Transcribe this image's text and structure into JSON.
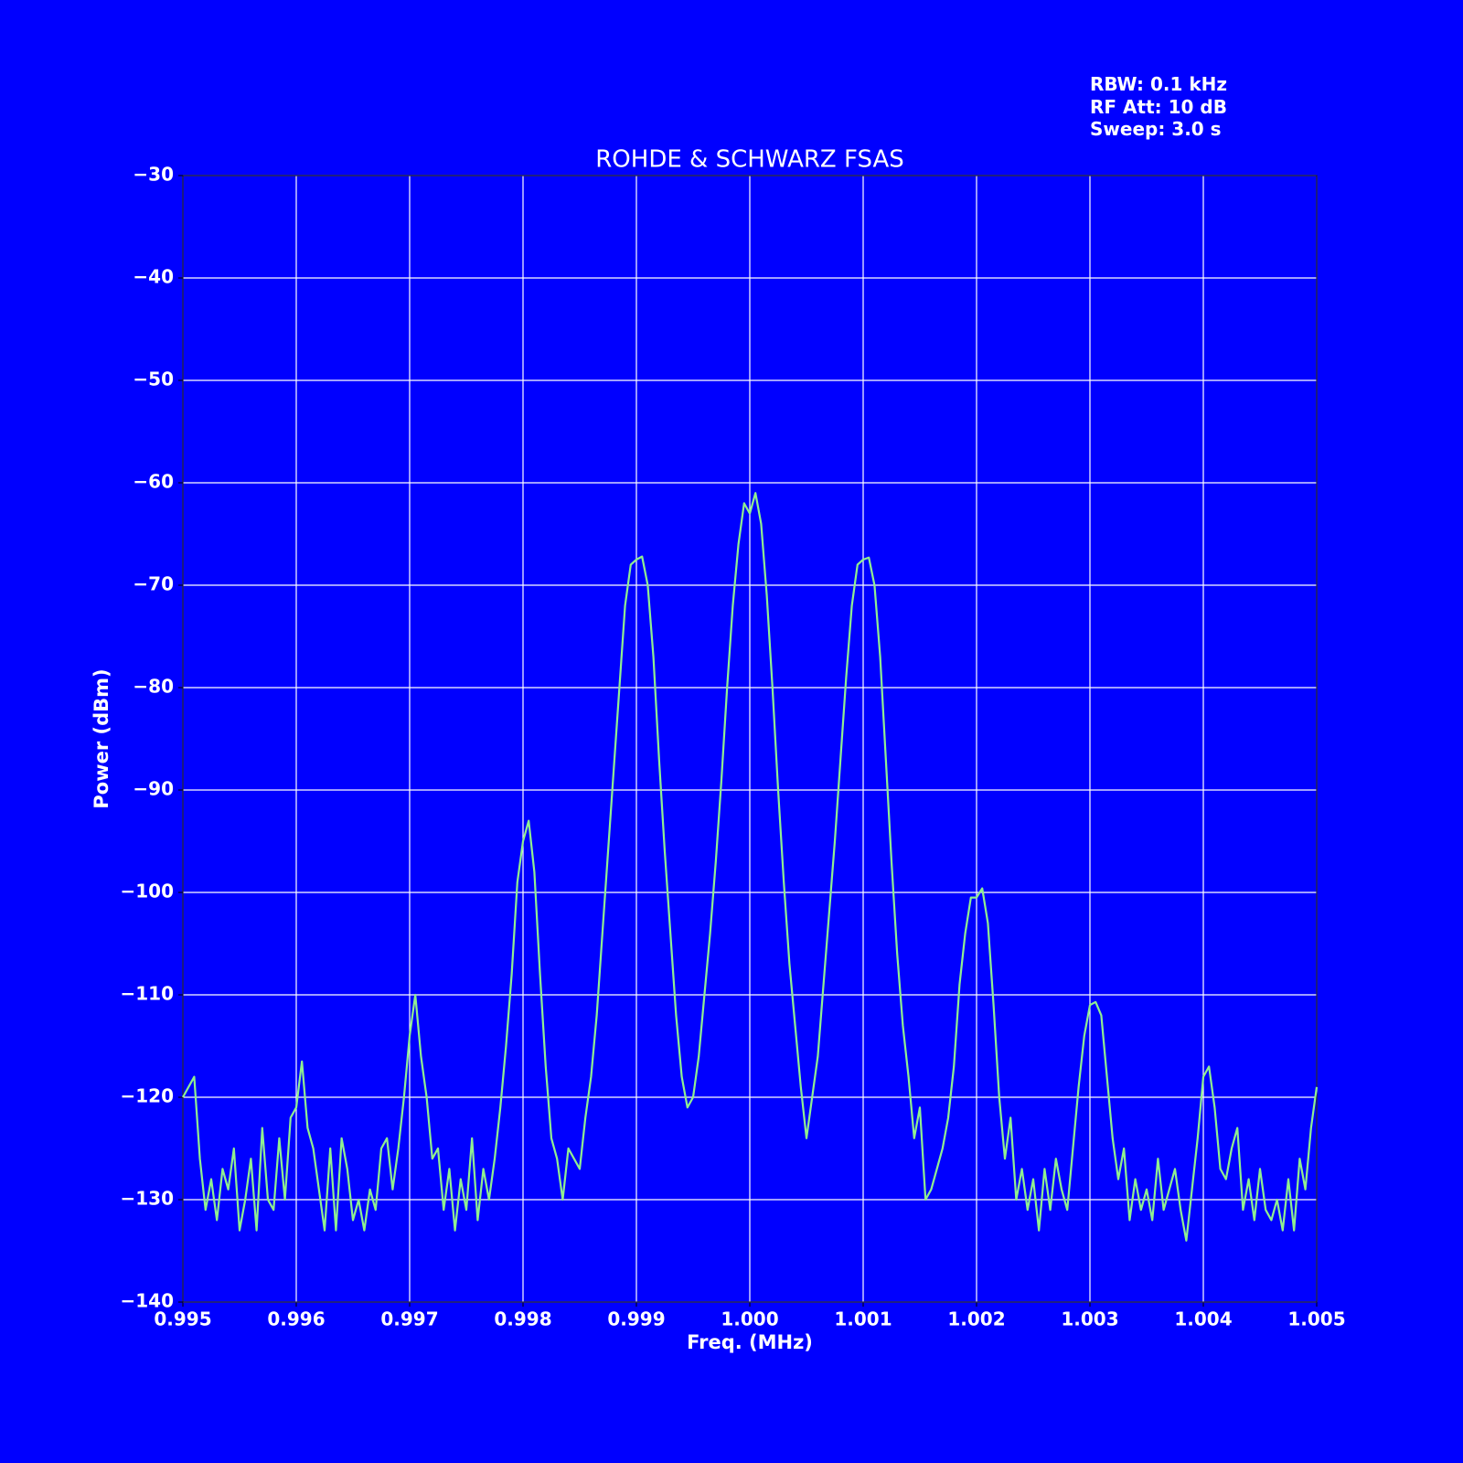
{
  "chart_data": {
    "type": "line",
    "title": "ROHDE & SCHWARZ FSAS",
    "annotation": [
      "RBW: 0.1 kHz",
      "RF Att: 10 dB",
      "Sweep: 3.0 s"
    ],
    "xlabel": "Freq. (MHz)",
    "ylabel": "Power (dBm)",
    "color": "#90ee90",
    "background": "#0000ff",
    "grid": true,
    "xlim": [
      0.995,
      1.005
    ],
    "ylim": [
      -140,
      -30
    ],
    "xticks": [
      0.995,
      0.996,
      0.997,
      0.998,
      0.999,
      {
        "value": 1.0,
        "label": "1.000"
      },
      1.001,
      1.002,
      1.003,
      1.004,
      1.005
    ],
    "yticks": [
      {
        "value": -140,
        "label": "−140"
      },
      {
        "value": -130,
        "label": "−130"
      },
      {
        "value": -120,
        "label": "−120"
      },
      {
        "value": -110,
        "label": "−110"
      },
      {
        "value": -100,
        "label": "−100"
      },
      {
        "value": -90,
        "label": "−90"
      },
      {
        "value": -80,
        "label": "−80"
      },
      {
        "value": -70,
        "label": "−70"
      },
      {
        "value": -60,
        "label": "−60"
      },
      {
        "value": -50,
        "label": "−50"
      },
      {
        "value": -40,
        "label": "−40"
      },
      {
        "value": -30,
        "label": "−30"
      }
    ],
    "x": [
      0.995,
      0.99505,
      0.9951,
      0.99515,
      0.9952,
      0.99525,
      0.9953,
      0.99535,
      0.9954,
      0.99545,
      0.9955,
      0.99555,
      0.9956,
      0.99565,
      0.9957,
      0.99575,
      0.9958,
      0.99585,
      0.9959,
      0.99595,
      0.996,
      0.99605,
      0.9961,
      0.99615,
      0.9962,
      0.99625,
      0.9963,
      0.99635,
      0.9964,
      0.99645,
      0.9965,
      0.99655,
      0.9966,
      0.99665,
      0.9967,
      0.99675,
      0.9968,
      0.99685,
      0.9969,
      0.99695,
      0.997,
      0.99705,
      0.9971,
      0.99715,
      0.9972,
      0.99725,
      0.9973,
      0.99735,
      0.9974,
      0.99745,
      0.9975,
      0.99755,
      0.9976,
      0.99765,
      0.9977,
      0.99775,
      0.9978,
      0.99785,
      0.9979,
      0.99795,
      0.998,
      0.99805,
      0.9981,
      0.99815,
      0.9982,
      0.99825,
      0.9983,
      0.99835,
      0.9984,
      0.99845,
      0.9985,
      0.99855,
      0.9986,
      0.99865,
      0.9987,
      0.99875,
      0.9988,
      0.99885,
      0.9989,
      0.99895,
      0.999,
      0.99905,
      0.9991,
      0.99915,
      0.9992,
      0.99925,
      0.9993,
      0.99935,
      0.9994,
      0.99945,
      0.9995,
      0.99955,
      0.9996,
      0.99965,
      0.9997,
      0.99975,
      0.9998,
      0.99985,
      0.9999,
      0.99995,
      1.0,
      1.00005,
      1.0001,
      1.00015,
      1.0002,
      1.00025,
      1.0003,
      1.00035,
      1.0004,
      1.00045,
      1.0005,
      1.00055,
      1.0006,
      1.00065,
      1.0007,
      1.00075,
      1.0008,
      1.00085,
      1.0009,
      1.00095,
      1.001,
      1.00105,
      1.0011,
      1.00115,
      1.0012,
      1.00125,
      1.0013,
      1.00135,
      1.0014,
      1.00145,
      1.0015,
      1.00155,
      1.0016,
      1.00165,
      1.0017,
      1.00175,
      1.0018,
      1.00185,
      1.0019,
      1.00195,
      1.002,
      1.00205,
      1.0021,
      1.00215,
      1.0022,
      1.00225,
      1.0023,
      1.00235,
      1.0024,
      1.00245,
      1.0025,
      1.00255,
      1.0026,
      1.00265,
      1.0027,
      1.00275,
      1.0028,
      1.00285,
      1.0029,
      1.00295,
      1.003,
      1.00305,
      1.0031,
      1.00315,
      1.0032,
      1.00325,
      1.0033,
      1.00335,
      1.0034,
      1.00345,
      1.0035,
      1.00355,
      1.0036,
      1.00365,
      1.0037,
      1.00375,
      1.0038,
      1.00385,
      1.0039,
      1.00395,
      1.004,
      1.00405,
      1.0041,
      1.00415,
      1.0042,
      1.00425,
      1.0043,
      1.00435,
      1.0044,
      1.00445,
      1.0045,
      1.00455,
      1.0046,
      1.00465,
      1.0047,
      1.00475,
      1.0048,
      1.00485,
      1.0049,
      1.00495,
      1.005
    ],
    "values": [
      -120,
      -119,
      -118,
      -126,
      -131,
      -128,
      -132,
      -127,
      -129,
      -125,
      -133,
      -130,
      -126,
      -133,
      -123,
      -130,
      -131,
      -124,
      -130,
      -122,
      -121,
      -116.5,
      -123,
      -125,
      -129,
      -133,
      -125,
      -133,
      -124,
      -127,
      -132,
      -130,
      -133,
      -129,
      -131,
      -125,
      -124,
      -129,
      -125,
      -120,
      -114,
      -110,
      -116,
      -120,
      -126,
      -125,
      -131,
      -127,
      -133,
      -128,
      -131,
      -124,
      -132,
      -127,
      -130,
      -126,
      -121,
      -115,
      -108,
      -99,
      -95,
      -93,
      -98,
      -108,
      -117,
      -124,
      -126,
      -130,
      -125,
      -126,
      -127,
      -122,
      -118,
      -112,
      -104,
      -96,
      -88,
      -80,
      -72,
      -68,
      -67.5,
      -67.2,
      -70,
      -77,
      -87,
      -96,
      -104,
      -112,
      -118,
      -121,
      -120,
      -116,
      -110,
      -104,
      -97,
      -89,
      -80,
      -72,
      -66,
      -62,
      -63,
      -61,
      -64,
      -71,
      -80,
      -90,
      -99,
      -107,
      -113,
      -119,
      -124,
      -120,
      -116,
      -109,
      -102,
      -95,
      -87,
      -79,
      -72,
      -68,
      -67.5,
      -67.3,
      -70,
      -77,
      -87,
      -97,
      -106,
      -113,
      -118,
      -124,
      -121,
      -130,
      -129,
      -127,
      -125,
      -122,
      -117,
      -109,
      -104,
      -100.5,
      -100.5,
      -99.6,
      -103,
      -111,
      -120,
      -126,
      -122,
      -130,
      -127,
      -131,
      -128,
      -133,
      -127,
      -131,
      -126,
      -129,
      -131,
      -125,
      -119,
      -114,
      -111,
      -110.7,
      -112,
      -118,
      -124,
      -128,
      -125,
      -132,
      -128,
      -131,
      -129,
      -132,
      -126,
      -131,
      -129,
      -127,
      -131,
      -134,
      -129,
      -124,
      -118,
      -117,
      -121,
      -127,
      -128,
      -125,
      -123,
      -131,
      -128,
      -132,
      -127,
      -131,
      -132,
      -130,
      -133,
      -128,
      -133,
      -126,
      -129,
      -123,
      -119
    ]
  }
}
